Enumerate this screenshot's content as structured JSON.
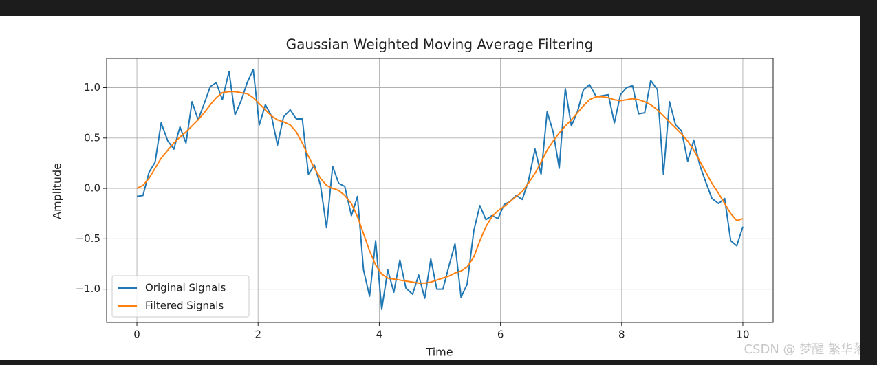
{
  "chart_data": {
    "type": "line",
    "title": "Gaussian Weighted Moving Average Filtering",
    "x_label": "Time",
    "y_label": "Amplitude",
    "x": [
      0,
      0.1,
      0.2,
      0.3,
      0.4,
      0.51,
      0.61,
      0.71,
      0.81,
      0.91,
      1.01,
      1.11,
      1.21,
      1.31,
      1.41,
      1.52,
      1.62,
      1.72,
      1.82,
      1.92,
      2.02,
      2.12,
      2.22,
      2.32,
      2.42,
      2.53,
      2.63,
      2.73,
      2.83,
      2.93,
      3.03,
      3.13,
      3.23,
      3.33,
      3.43,
      3.54,
      3.64,
      3.74,
      3.84,
      3.94,
      4.04,
      4.14,
      4.24,
      4.34,
      4.44,
      4.55,
      4.65,
      4.75,
      4.85,
      4.95,
      5.05,
      5.15,
      5.25,
      5.35,
      5.45,
      5.56,
      5.66,
      5.76,
      5.86,
      5.96,
      6.06,
      6.16,
      6.26,
      6.36,
      6.46,
      6.57,
      6.67,
      6.77,
      6.87,
      6.97,
      7.07,
      7.17,
      7.27,
      7.37,
      7.47,
      7.58,
      7.68,
      7.78,
      7.88,
      7.98,
      8.08,
      8.18,
      8.28,
      8.38,
      8.48,
      8.59,
      8.69,
      8.79,
      8.89,
      8.99,
      9.09,
      9.19,
      9.29,
      9.39,
      9.49,
      9.6,
      9.7,
      9.8,
      9.9,
      10
    ],
    "series": [
      {
        "name": "Original Signals",
        "color": "#1f77b4",
        "values": [
          -0.08,
          -0.07,
          0.16,
          0.26,
          0.65,
          0.47,
          0.39,
          0.61,
          0.45,
          0.86,
          0.68,
          0.84,
          1.01,
          1.05,
          0.88,
          1.16,
          0.73,
          0.87,
          1.05,
          1.18,
          0.63,
          0.83,
          0.72,
          0.43,
          0.71,
          0.78,
          0.69,
          0.69,
          0.14,
          0.23,
          0.03,
          -0.39,
          0.22,
          0.05,
          0.02,
          -0.27,
          -0.08,
          -0.81,
          -1.07,
          -0.52,
          -1.2,
          -0.81,
          -1.03,
          -0.71,
          -0.99,
          -1.05,
          -0.86,
          -1.09,
          -0.7,
          -1.0,
          -1.0,
          -0.77,
          -0.55,
          -1.08,
          -0.95,
          -0.42,
          -0.17,
          -0.31,
          -0.27,
          -0.3,
          -0.16,
          -0.13,
          -0.07,
          -0.11,
          0.07,
          0.39,
          0.14,
          0.76,
          0.56,
          0.2,
          0.99,
          0.62,
          0.76,
          0.98,
          1.03,
          0.91,
          0.92,
          0.93,
          0.65,
          0.93,
          1.0,
          1.02,
          0.74,
          0.75,
          1.07,
          0.98,
          0.14,
          0.86,
          0.63,
          0.57,
          0.27,
          0.48,
          0.23,
          0.06,
          -0.1,
          -0.15,
          -0.1,
          -0.52,
          -0.57,
          -0.38
        ]
      },
      {
        "name": "Filtered Signals",
        "color": "#ff7f0e",
        "values": [
          0.0,
          0.03,
          0.1,
          0.2,
          0.3,
          0.38,
          0.45,
          0.51,
          0.56,
          0.62,
          0.68,
          0.75,
          0.83,
          0.9,
          0.95,
          0.96,
          0.96,
          0.95,
          0.94,
          0.9,
          0.84,
          0.78,
          0.72,
          0.68,
          0.66,
          0.63,
          0.56,
          0.45,
          0.32,
          0.2,
          0.1,
          0.03,
          0.0,
          -0.02,
          -0.07,
          -0.15,
          -0.28,
          -0.45,
          -0.62,
          -0.76,
          -0.85,
          -0.89,
          -0.9,
          -0.91,
          -0.92,
          -0.93,
          -0.94,
          -0.94,
          -0.93,
          -0.91,
          -0.89,
          -0.87,
          -0.84,
          -0.82,
          -0.78,
          -0.68,
          -0.52,
          -0.38,
          -0.28,
          -0.22,
          -0.18,
          -0.13,
          -0.08,
          -0.03,
          0.05,
          0.15,
          0.26,
          0.38,
          0.47,
          0.55,
          0.62,
          0.68,
          0.75,
          0.82,
          0.88,
          0.91,
          0.91,
          0.9,
          0.88,
          0.87,
          0.88,
          0.89,
          0.88,
          0.86,
          0.83,
          0.78,
          0.72,
          0.66,
          0.6,
          0.54,
          0.47,
          0.38,
          0.27,
          0.16,
          0.05,
          -0.05,
          -0.15,
          -0.25,
          -0.32,
          -0.3
        ]
      }
    ],
    "xlim": [
      -0.5,
      10.5
    ],
    "ylim": [
      -1.33,
      1.29
    ],
    "xticks": [
      0,
      2,
      4,
      6,
      8,
      10
    ],
    "yticks": [
      {
        "value": -1.0,
        "label": "−1.0"
      },
      {
        "value": -0.5,
        "label": "−0.5"
      },
      {
        "value": 0.0,
        "label": "0.0"
      },
      {
        "value": 0.5,
        "label": "0.5"
      },
      {
        "value": 1.0,
        "label": "1.0"
      }
    ],
    "grid": true,
    "legend": "lower left"
  },
  "watermark": "CSDN @ 梦醒 繁华落"
}
